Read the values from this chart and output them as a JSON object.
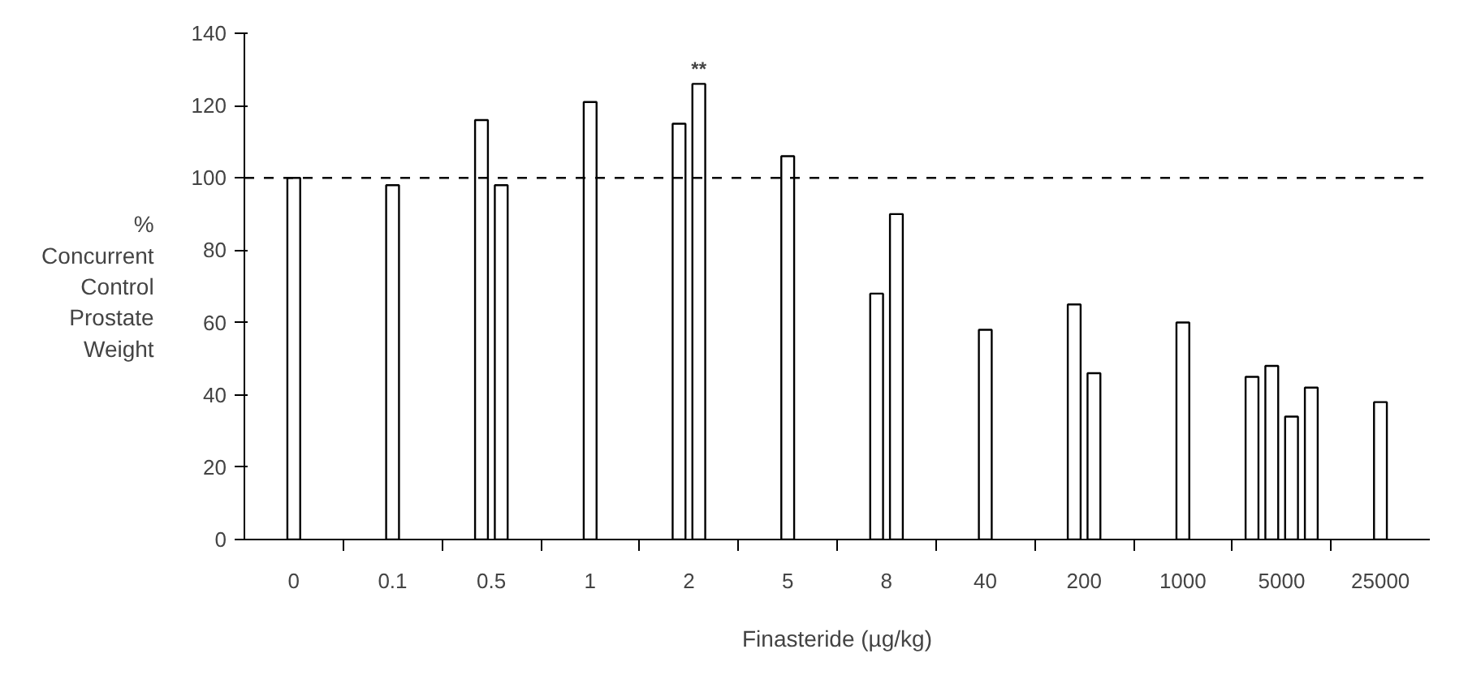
{
  "chart_data": {
    "type": "bar",
    "xlabel": "Finasteride (µg/kg)",
    "ylabel": "%\nConcurrent\nControl\nProstate\nWeight",
    "categories": [
      "0",
      "0.1",
      "0.5",
      "1",
      "2",
      "5",
      "8",
      "40",
      "200",
      "1000",
      "5000",
      "25000"
    ],
    "series": [
      {
        "color": "#ffffff",
        "values": [
          100,
          98,
          116,
          121,
          115,
          106,
          68,
          58,
          65,
          60,
          45,
          38
        ]
      },
      {
        "color": "#ffffff",
        "values": [
          null,
          null,
          98,
          null,
          126,
          null,
          90,
          null,
          46,
          null,
          48,
          null
        ]
      },
      {
        "color": "#ffffff",
        "values": [
          null,
          null,
          null,
          null,
          null,
          null,
          null,
          null,
          null,
          null,
          34,
          null
        ]
      },
      {
        "color": "#ffffff",
        "values": [
          null,
          null,
          null,
          null,
          null,
          null,
          null,
          null,
          null,
          null,
          42,
          null
        ]
      }
    ],
    "ylim": [
      0,
      140
    ],
    "yticks": [
      0,
      20,
      40,
      60,
      80,
      100,
      120,
      140
    ],
    "ref_lines": [
      {
        "axis": "y",
        "value": 100,
        "line_style": "dashed",
        "color": "#000000"
      }
    ],
    "annotations": [
      {
        "text": "**",
        "x": "2",
        "y": 126
      }
    ],
    "grid": false
  }
}
